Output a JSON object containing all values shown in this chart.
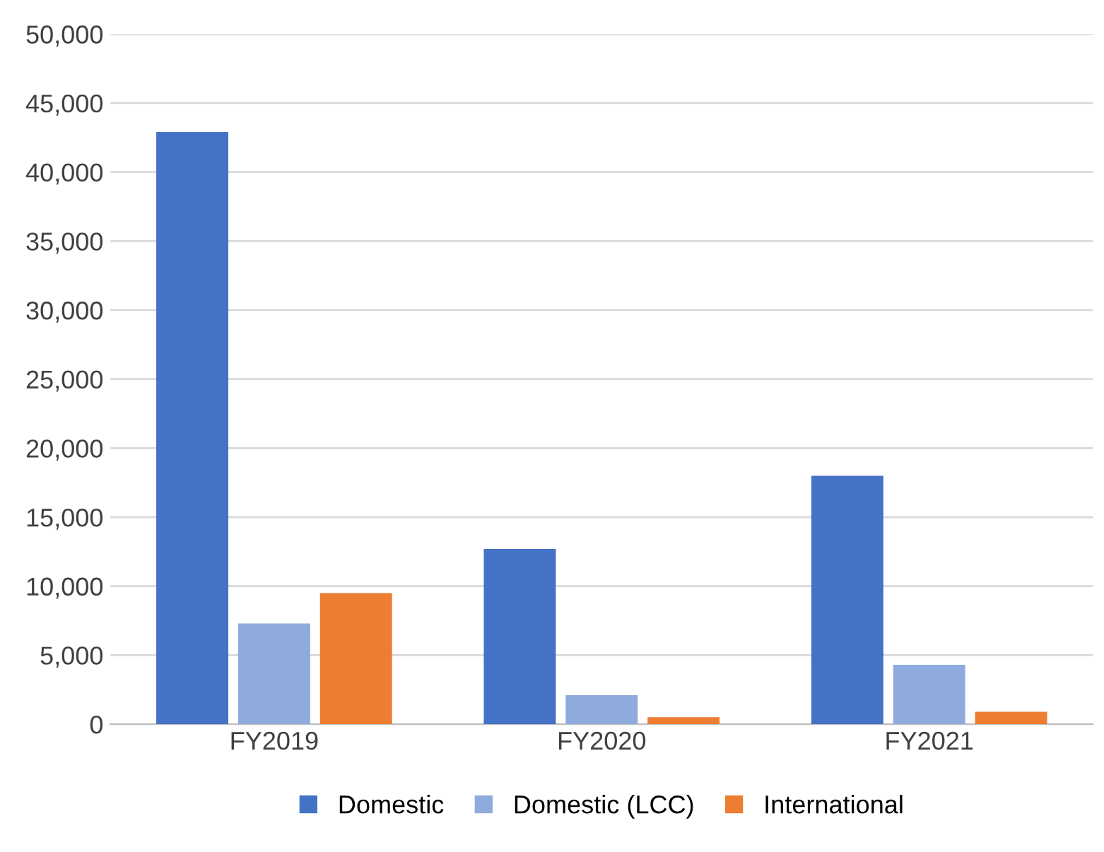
{
  "chart_data": {
    "type": "bar",
    "categories": [
      "FY2019",
      "FY2020",
      "FY2021"
    ],
    "series": [
      {
        "name": "Domestic",
        "color": "#4472c4",
        "values": [
          42900,
          12700,
          18000
        ]
      },
      {
        "name": "Domestic (LCC)",
        "color": "#8faadc",
        "values": [
          7300,
          2100,
          4300
        ]
      },
      {
        "name": "International",
        "color": "#ed7d31",
        "values": [
          9500,
          500,
          900
        ]
      }
    ],
    "ylim": [
      0,
      50000
    ],
    "yticks": [
      {
        "value": 0,
        "label": "0"
      },
      {
        "value": 5000,
        "label": "5,000"
      },
      {
        "value": 10000,
        "label": "10,000"
      },
      {
        "value": 15000,
        "label": "15,000"
      },
      {
        "value": 20000,
        "label": "20,000"
      },
      {
        "value": 25000,
        "label": "25,000"
      },
      {
        "value": 30000,
        "label": "30,000"
      },
      {
        "value": 35000,
        "label": "35,000"
      },
      {
        "value": 40000,
        "label": "40,000"
      },
      {
        "value": 45000,
        "label": "45,000"
      },
      {
        "value": 50000,
        "label": "50,000"
      }
    ],
    "grid": "y",
    "legend": "bottom"
  }
}
